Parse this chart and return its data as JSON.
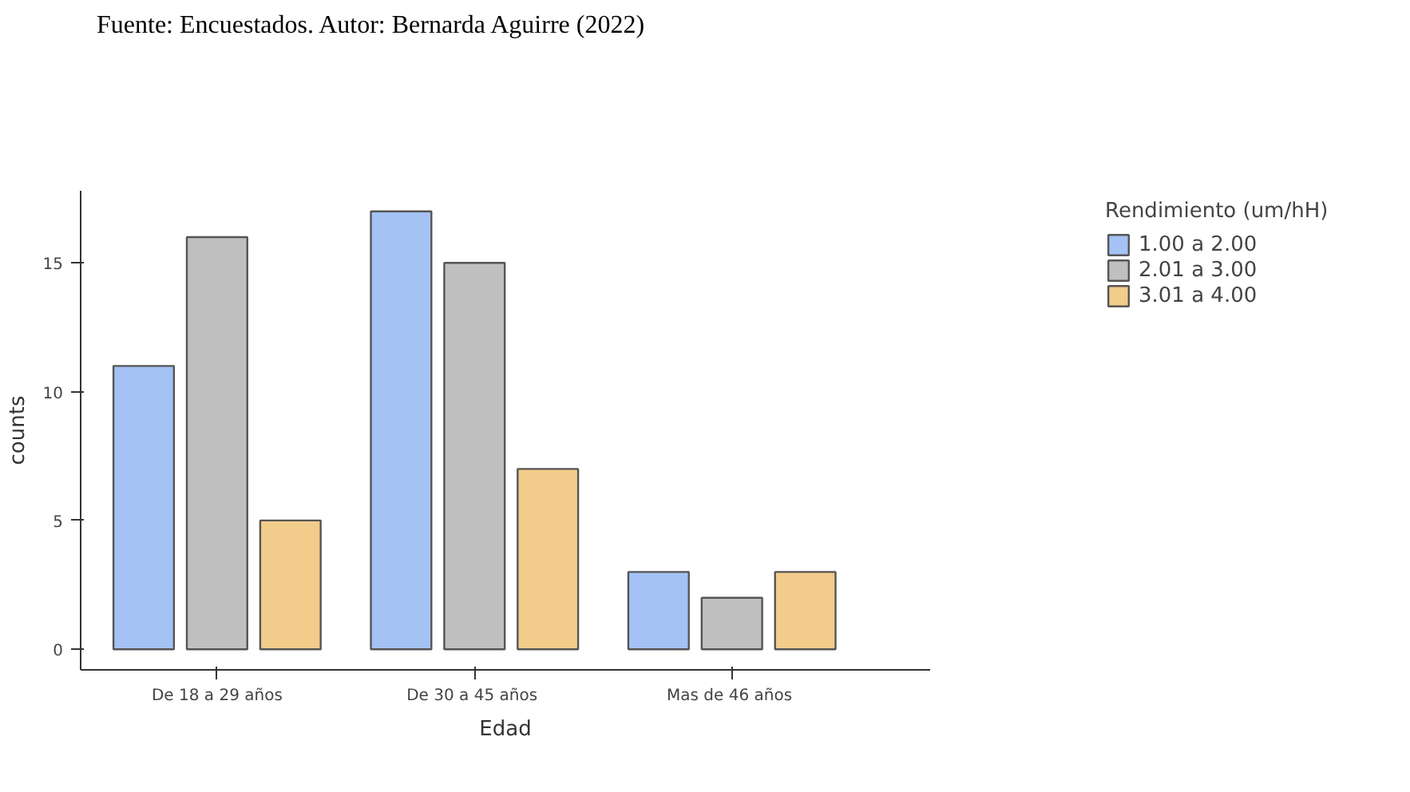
{
  "chart_data": {
    "type": "bar",
    "xlabel": "Edad",
    "ylabel": "counts",
    "legend_title": "Rendimiento (um/hH)",
    "annotations": [
      "Fuente: Encuestados. Autor: Bernarda Aguirre (2022)"
    ],
    "categories": [
      "De 18 a 29 años",
      "De 30 a 45  años",
      "Mas de 46  años"
    ],
    "series": [
      {
        "name": "1.00 a 2.00",
        "color": "#a4c2f4",
        "values": [
          11,
          17,
          3
        ]
      },
      {
        "name": "2.01 a 3.00",
        "color": "#c0c0c0",
        "values": [
          16,
          15,
          2
        ]
      },
      {
        "name": "3.01 a 4.00",
        "color": "#f2cc8a",
        "values": [
          5,
          7,
          3
        ]
      }
    ],
    "ylim": [
      -0.8,
      17.8
    ],
    "yticks": [
      0,
      5,
      10,
      15
    ],
    "grid": false,
    "legend": "top right"
  }
}
